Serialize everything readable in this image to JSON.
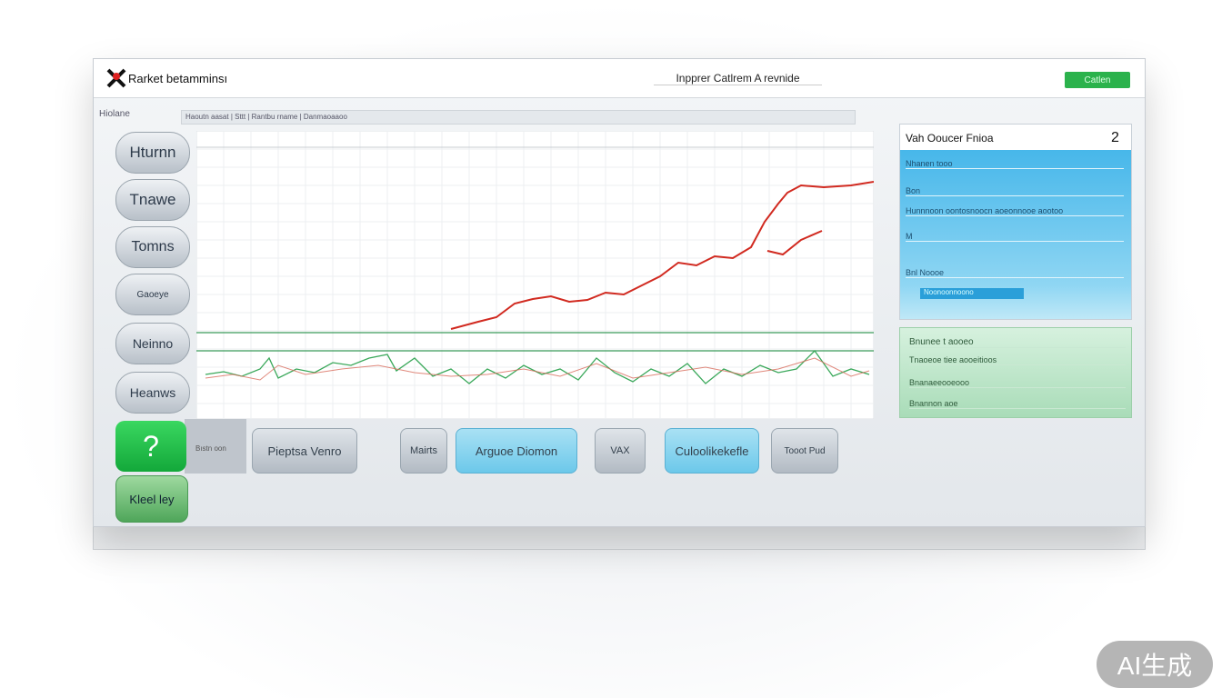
{
  "header": {
    "app_title": "Rarket betamminsı",
    "center_title": "Inpprer Catlrem A revnide",
    "action_button": "Catlen"
  },
  "toolbar": {
    "label": "Hiolane",
    "breadcrumb": "Haoutn aasat | Sttt | Rantbu rname | Danmaoaaoo"
  },
  "sidebar": {
    "buttons": [
      "Hturnn",
      "Tnawe",
      "Tomns",
      "Gaoeye",
      "Neinno",
      "Heanws"
    ],
    "help": "?",
    "help_caption": "Bıstn oon",
    "footer_button": "Kleel ley"
  },
  "bottom_buttons": [
    "Pieptsa Venro",
    "Mairts",
    "Arguoe Diomon",
    "VAX",
    "Culoolikekefle",
    "Tooot Pud"
  ],
  "side_panel": {
    "title": "Vah Ooucer Fnioa",
    "badge": "2",
    "rows": [
      "Nhanen tooo",
      "Bon",
      "Hunnnoon oontosnoocn aoeonnooe aootoo",
      "M",
      "Bnl Noooe",
      "Noonoonnoono"
    ],
    "green_title": "Bnunee t aooeo",
    "green_rows": [
      "Tnaoeoe tiee aooeitioos",
      "Bnanaeeooeooo",
      "Bnannon aoe"
    ]
  },
  "watermark": "AI生成"
}
